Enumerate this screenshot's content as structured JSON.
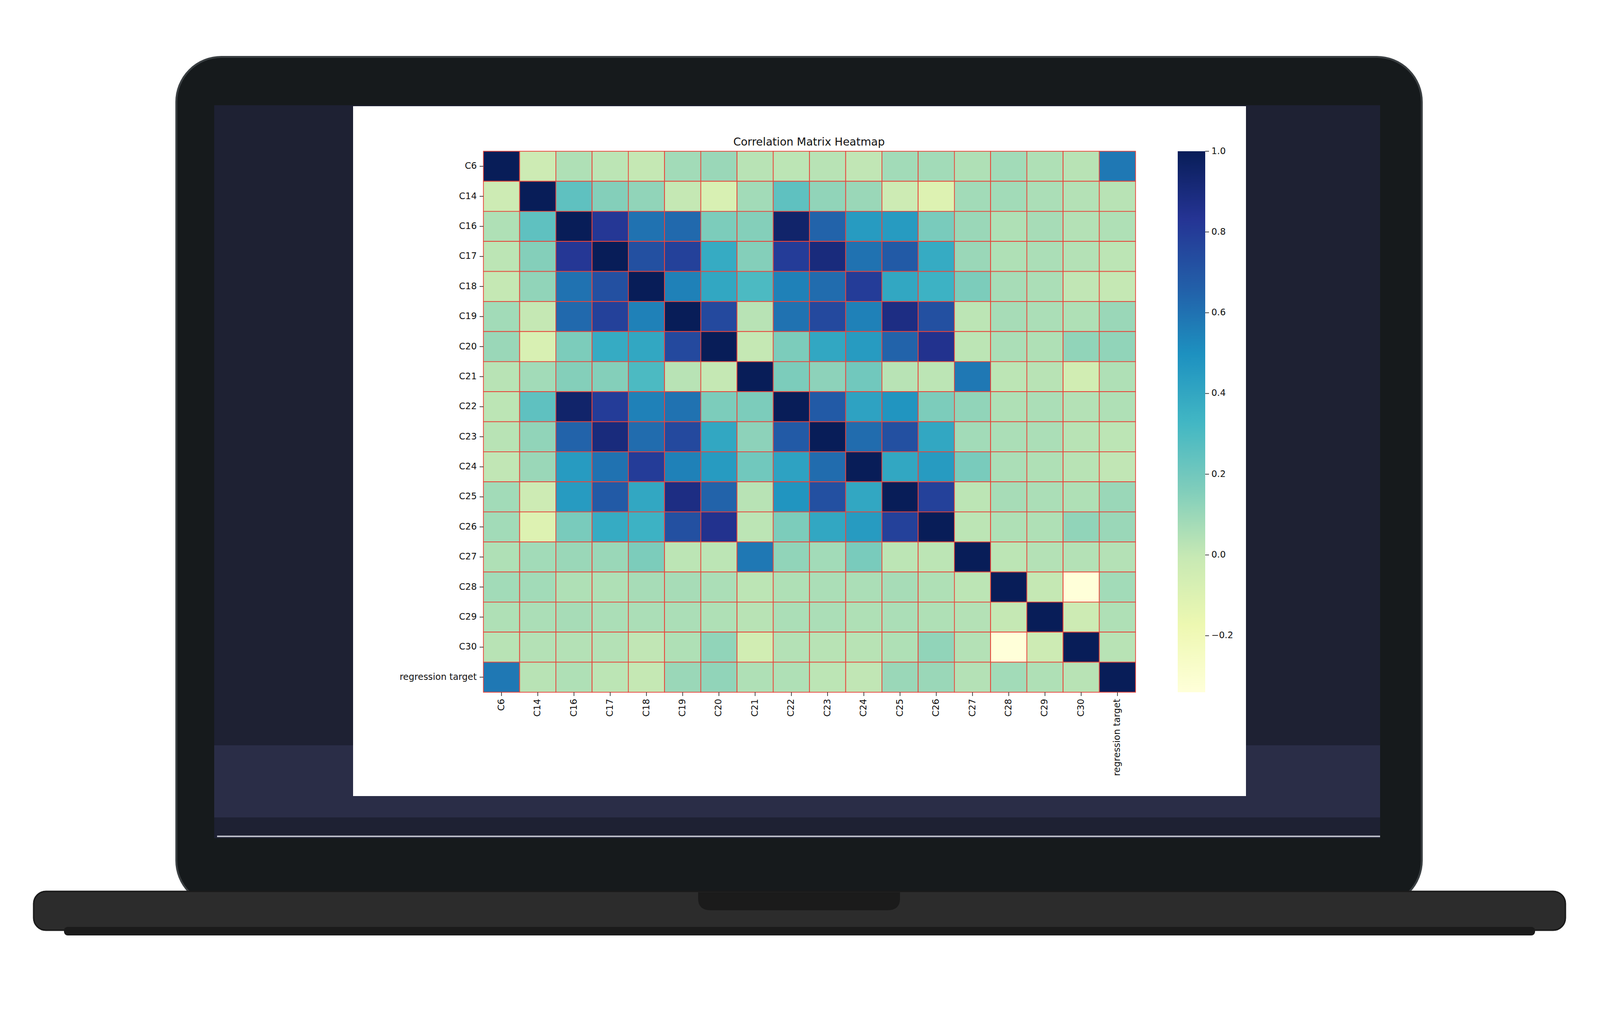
{
  "chart_data": {
    "type": "heatmap",
    "title": "Correlation Matrix Heatmap",
    "color": "YlGnBu",
    "x_categories": [
      "C6",
      "C14",
      "C16",
      "C17",
      "C18",
      "C19",
      "C20",
      "C21",
      "C22",
      "C23",
      "C24",
      "C25",
      "C26",
      "C27",
      "C28",
      "C29",
      "C30",
      "regression target"
    ],
    "y_categories": [
      "C6",
      "C14",
      "C16",
      "C17",
      "C18",
      "C19",
      "C20",
      "C21",
      "C22",
      "C23",
      "C24",
      "C25",
      "C26",
      "C27",
      "C28",
      "C29",
      "C30",
      "regression target"
    ],
    "values": [
      [
        1,
        -0.03,
        0.05,
        0.02,
        0.0,
        0.08,
        0.1,
        0.03,
        0.02,
        0.03,
        0.01,
        0.08,
        0.08,
        0.05,
        0.08,
        0.05,
        0.03,
        0.58
      ],
      [
        -0.03,
        1,
        0.25,
        0.15,
        0.12,
        0.0,
        -0.08,
        0.08,
        0.25,
        0.12,
        0.1,
        -0.03,
        -0.1,
        0.08,
        0.08,
        0.06,
        0.04,
        0.03
      ],
      [
        0.05,
        0.25,
        1,
        0.82,
        0.6,
        0.63,
        0.17,
        0.15,
        0.95,
        0.65,
        0.45,
        0.45,
        0.18,
        0.1,
        0.05,
        0.07,
        0.04,
        0.05
      ],
      [
        0.02,
        0.15,
        0.82,
        1,
        0.72,
        0.78,
        0.38,
        0.15,
        0.8,
        0.9,
        0.6,
        0.68,
        0.38,
        0.1,
        0.05,
        0.06,
        0.04,
        0.02
      ],
      [
        0.0,
        0.12,
        0.6,
        0.72,
        1,
        0.55,
        0.4,
        0.3,
        0.55,
        0.62,
        0.8,
        0.4,
        0.35,
        0.17,
        0.07,
        0.06,
        0.01,
        0.0
      ],
      [
        0.08,
        0.0,
        0.63,
        0.78,
        0.55,
        1,
        0.75,
        0.03,
        0.6,
        0.75,
        0.55,
        0.88,
        0.72,
        0.02,
        0.07,
        0.06,
        0.05,
        0.1
      ],
      [
        0.1,
        -0.08,
        0.17,
        0.38,
        0.4,
        0.75,
        1,
        0.0,
        0.17,
        0.4,
        0.45,
        0.65,
        0.85,
        0.02,
        0.06,
        0.05,
        0.12,
        0.12
      ],
      [
        0.03,
        0.08,
        0.15,
        0.15,
        0.3,
        0.03,
        0.0,
        1,
        0.17,
        0.13,
        0.2,
        0.03,
        0.02,
        0.58,
        0.02,
        0.03,
        -0.05,
        0.05
      ],
      [
        0.02,
        0.25,
        0.95,
        0.8,
        0.55,
        0.6,
        0.17,
        0.17,
        1,
        0.68,
        0.42,
        0.48,
        0.17,
        0.12,
        0.05,
        0.06,
        0.04,
        0.05
      ],
      [
        0.03,
        0.12,
        0.65,
        0.9,
        0.62,
        0.75,
        0.4,
        0.13,
        0.68,
        1,
        0.62,
        0.72,
        0.4,
        0.08,
        0.06,
        0.06,
        0.03,
        0.02
      ],
      [
        0.01,
        0.1,
        0.45,
        0.6,
        0.8,
        0.55,
        0.45,
        0.2,
        0.42,
        0.62,
        1,
        0.4,
        0.45,
        0.18,
        0.06,
        0.05,
        0.03,
        0.01
      ],
      [
        0.08,
        -0.03,
        0.45,
        0.68,
        0.4,
        0.88,
        0.65,
        0.03,
        0.48,
        0.72,
        0.4,
        1,
        0.78,
        0.02,
        0.07,
        0.06,
        0.05,
        0.1
      ],
      [
        0.08,
        -0.1,
        0.18,
        0.38,
        0.35,
        0.72,
        0.85,
        0.02,
        0.17,
        0.4,
        0.45,
        0.78,
        1,
        0.02,
        0.05,
        0.05,
        0.12,
        0.1
      ],
      [
        0.05,
        0.08,
        0.1,
        0.1,
        0.17,
        0.02,
        0.02,
        0.58,
        0.12,
        0.08,
        0.18,
        0.02,
        0.02,
        1,
        0.02,
        0.04,
        0.04,
        0.04
      ],
      [
        0.08,
        0.08,
        0.05,
        0.05,
        0.07,
        0.07,
        0.06,
        0.02,
        0.05,
        0.06,
        0.06,
        0.07,
        0.05,
        0.02,
        1,
        0.0,
        -0.34,
        0.08
      ],
      [
        0.05,
        0.06,
        0.07,
        0.06,
        0.06,
        0.06,
        0.05,
        0.03,
        0.06,
        0.06,
        0.05,
        0.06,
        0.05,
        0.04,
        0.0,
        1,
        -0.03,
        0.05
      ],
      [
        0.03,
        0.04,
        0.04,
        0.04,
        0.01,
        0.05,
        0.12,
        -0.05,
        0.04,
        0.03,
        0.03,
        0.05,
        0.12,
        0.04,
        -0.34,
        -0.03,
        1,
        0.03
      ],
      [
        0.58,
        0.03,
        0.05,
        0.02,
        0.0,
        0.1,
        0.12,
        0.05,
        0.05,
        0.02,
        0.01,
        0.1,
        0.1,
        0.04,
        0.08,
        0.05,
        0.03,
        1
      ]
    ],
    "color_scale": {
      "range": [
        -0.34,
        1.0
      ],
      "ticks": [
        {
          "value": -0.2,
          "label": "−0.2"
        },
        {
          "value": 0.0,
          "label": "0.0"
        },
        0.2,
        0.4,
        0.6,
        0.8,
        {
          "value": 1.0,
          "label": "1.0"
        }
      ]
    }
  }
}
